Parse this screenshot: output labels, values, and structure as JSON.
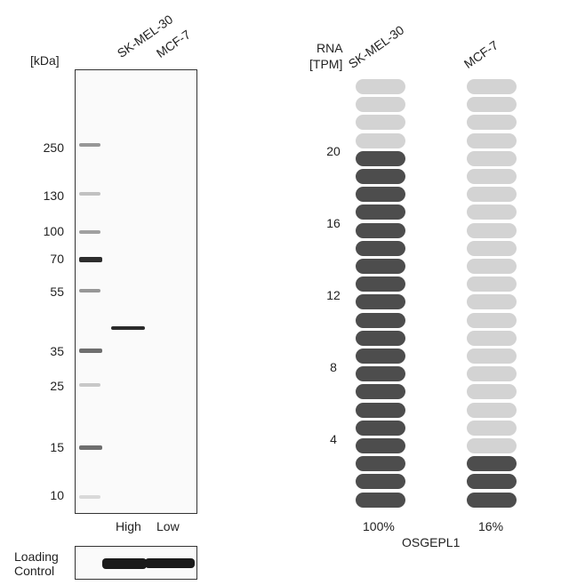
{
  "western_blot": {
    "unit_label": "[kDa]",
    "lanes": [
      "SK-MEL-30",
      "MCF-7"
    ],
    "markers": [
      "250",
      "130",
      "100",
      "70",
      "55",
      "35",
      "25",
      "15",
      "10"
    ],
    "expression_labels": [
      "High",
      "Low"
    ],
    "loading_control_line1": "Loading",
    "loading_control_line2": "Control"
  },
  "rna": {
    "axis_label_line1": "RNA",
    "axis_label_line2": "[TPM]",
    "cell_lines": [
      "SK-MEL-30",
      "MCF-7"
    ],
    "ticks": [
      "20",
      "16",
      "12",
      "8",
      "4"
    ],
    "percentages": [
      "100%",
      "16%"
    ],
    "gene": "OSGEPL1",
    "total_segments": 24,
    "filled_segments": [
      20,
      3
    ],
    "colors": {
      "filled": "#4d4d4d",
      "empty": "#d3d3d3"
    }
  }
}
